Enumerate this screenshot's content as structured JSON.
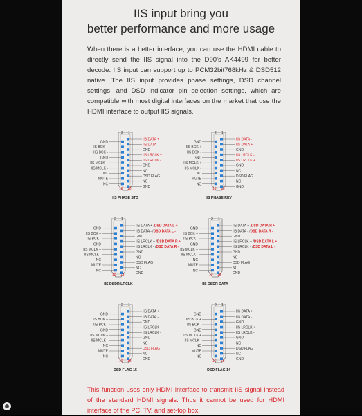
{
  "title_line1": "IIS input bring you",
  "title_line2": "better performance and more usage",
  "paragraph": "When there is a better interface, you can use the HDMI cable to directly send the IIS signal into the D90's AK4499 for better decode. IIS input can support up to PCM32bit768kHz & DSD512 native. The IIS input provides phase settings, DSD channel settings, and DSD indicator pin selection settings, which are compatible with most digital interfaces on the market that use the HDMI interface to output IIS signals.",
  "footer": "This function uses only HDMI interface to transmit IIS signal instead of the standard HDMI signals. Thus it cannot be used for HDMI interface of the PC, TV, and set-top box.",
  "colors": {
    "red": "#d8262b",
    "blue": "#2c7fd1",
    "text": "#333333"
  },
  "diagrams": [
    {
      "caption": "IIS PHASE STD",
      "left": [
        "GND",
        "IIS BCK +",
        "IIS BCK -",
        "GND",
        "IIS MCLK +",
        "IIS MCLK -",
        "NC",
        "MUTE",
        "NC"
      ],
      "right": [
        {
          "t": "IIS DATA +",
          "r": true
        },
        {
          "t": "IIS DATA -",
          "r": true
        },
        {
          "t": "GND",
          "r": false
        },
        {
          "t": "IIS LRCLK +",
          "r": true
        },
        {
          "t": "IIS LRCLK -",
          "r": true
        },
        {
          "t": "GND",
          "r": false
        },
        {
          "t": "NC",
          "r": false
        },
        {
          "t": "DSD FLAG",
          "r": false
        },
        {
          "t": "NC",
          "r": false
        },
        {
          "t": "GND",
          "r": false
        }
      ]
    },
    {
      "caption": "IIS PHASE REV",
      "left": [
        "GND",
        "IIS BCK +",
        "IIS BCK -",
        "GND",
        "IIS MCLK +",
        "IIS MCLK -",
        "NC",
        "MUTE",
        "NC"
      ],
      "right": [
        {
          "t": "IIS DATA -",
          "r": true
        },
        {
          "t": "IIS DATA +",
          "r": true
        },
        {
          "t": "GND",
          "r": false
        },
        {
          "t": "IIS LRCLK -",
          "r": true
        },
        {
          "t": "IIS LRCLK +",
          "r": true
        },
        {
          "t": "GND",
          "r": false
        },
        {
          "t": "NC",
          "r": false
        },
        {
          "t": "DSD FLAG",
          "r": false
        },
        {
          "t": "NC",
          "r": false
        },
        {
          "t": "GND",
          "r": false
        }
      ]
    },
    {
      "caption": "IIS DSDR LRCLK",
      "left": [
        "GND",
        "IIS BCK +",
        "IIS BCK -",
        "GND",
        "IIS MCLK +",
        "IIS MCLK -",
        "NC",
        "MUTE",
        "NC"
      ],
      "right": [
        {
          "t": "IIS DATA + /",
          "r2": "DSD DATA L +"
        },
        {
          "t": "IIS DATA - /",
          "r2": "DSD DATA L -"
        },
        {
          "t": "GND"
        },
        {
          "t": "IIS LRCLK + /",
          "r2": "DSD DATA R +"
        },
        {
          "t": "IIS LRCLK - /",
          "r2": "DSD DATA R -"
        },
        {
          "t": "GND"
        },
        {
          "t": "NC"
        },
        {
          "t": "DSD FLAG"
        },
        {
          "t": "NC"
        },
        {
          "t": "GND"
        }
      ]
    },
    {
      "caption": "IIS DSDR DATA",
      "left": [
        "GND",
        "IIS BCK +",
        "IIS BCK -",
        "GND",
        "IIS MCLK +",
        "IIS MCLK -",
        "NC",
        "MUTE",
        "NC"
      ],
      "right": [
        {
          "t": "IIS DATA + /",
          "r2": "DSD DATA R +"
        },
        {
          "t": "IIS DATA - /",
          "r2": "DSD DATA R -"
        },
        {
          "t": "GND"
        },
        {
          "t": "IIS LRCLK + /",
          "r2": "DSD DATA L +"
        },
        {
          "t": "IIS LRCLK - /",
          "r2": "DSD DATA L -"
        },
        {
          "t": "GND"
        },
        {
          "t": "NC"
        },
        {
          "t": "DSD FLAG"
        },
        {
          "t": "NC"
        },
        {
          "t": "GND"
        }
      ]
    },
    {
      "caption": "DSD FLAG 15",
      "left": [
        "GND",
        "IIS BCK +",
        "IIS BCK -",
        "GND",
        "IIS MCLK +",
        "IIS MCLK -",
        "NC",
        "MUTE",
        "NC"
      ],
      "right": [
        {
          "t": "IIS DATA +",
          "r": false
        },
        {
          "t": "IIS DATA -",
          "r": false
        },
        {
          "t": "GND",
          "r": false
        },
        {
          "t": "IIS LRCLK +",
          "r": false
        },
        {
          "t": "IIS LRCLK -",
          "r": false
        },
        {
          "t": "GND",
          "r": false
        },
        {
          "t": "NC",
          "r": false
        },
        {
          "t": "DSD FLAG",
          "r": true
        },
        {
          "t": "NC",
          "r": false
        },
        {
          "t": "GND",
          "r": false
        }
      ]
    },
    {
      "caption": "DSD FLAG 14",
      "left": [
        "GND",
        "IIS BCK +",
        "IIS BCK -",
        "GND",
        "IIS MCLK +",
        "IIS MCLK -",
        "NC",
        "MUTE",
        "NC"
      ],
      "right": [
        {
          "t": "IIS DATA +",
          "r": false
        },
        {
          "t": "IIS DATA -",
          "r": false
        },
        {
          "t": "GND",
          "r": false
        },
        {
          "t": "IIS LRCLK +",
          "r": false
        },
        {
          "t": "IIS LRCLK -",
          "r": false
        },
        {
          "t": "GND",
          "r": false
        },
        {
          "t": "NC",
          "r": false
        },
        {
          "t": "DSD FLAG",
          "r": false
        },
        {
          "t": "NC",
          "r": false
        },
        {
          "t": "GND",
          "r": false
        }
      ]
    }
  ],
  "pin_numbers": {
    "top_left": "2",
    "top_right": "1",
    "bottom_left": "19",
    "bottom_right": "18"
  }
}
